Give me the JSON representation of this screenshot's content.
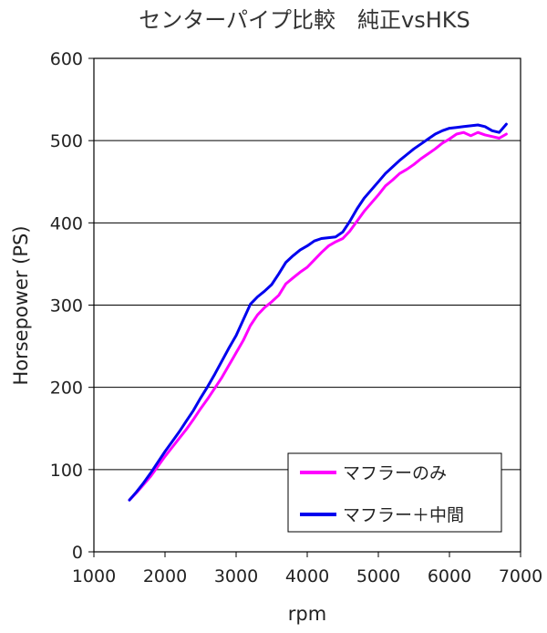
{
  "chart_data": {
    "type": "line",
    "title": "センターパイプ比較　純正vsHKS",
    "xlabel": "rpm",
    "ylabel": "Horsepower (PS)",
    "xlim": [
      1000,
      7000
    ],
    "ylim": [
      0,
      600
    ],
    "x_ticks": [
      1000,
      2000,
      3000,
      4000,
      5000,
      6000,
      7000
    ],
    "y_ticks": [
      0,
      100,
      200,
      300,
      400,
      500,
      600
    ],
    "grid": "horizontal",
    "legend_position": "bottom-right",
    "series": [
      {
        "name": "マフラーのみ",
        "color": "#ff00ff",
        "x": [
          1500,
          1600,
          1700,
          1800,
          1900,
          2000,
          2100,
          2200,
          2300,
          2400,
          2500,
          2600,
          2700,
          2800,
          2900,
          3000,
          3100,
          3200,
          3300,
          3400,
          3500,
          3600,
          3700,
          3800,
          3900,
          4000,
          4100,
          4200,
          4300,
          4400,
          4500,
          4600,
          4700,
          4800,
          4900,
          5000,
          5100,
          5200,
          5300,
          5400,
          5500,
          5600,
          5700,
          5800,
          5900,
          6000,
          6100,
          6200,
          6300,
          6400,
          6500,
          6600,
          6700,
          6800
        ],
        "y": [
          63,
          72,
          82,
          92,
          104,
          116,
          127,
          138,
          149,
          161,
          174,
          186,
          199,
          212,
          227,
          242,
          257,
          275,
          288,
          297,
          304,
          312,
          326,
          333,
          340,
          346,
          355,
          364,
          372,
          377,
          381,
          390,
          402,
          414,
          424,
          434,
          445,
          452,
          460,
          465,
          471,
          478,
          484,
          490,
          497,
          502,
          508,
          510,
          506,
          510,
          507,
          505,
          503,
          508
        ]
      },
      {
        "name": "マフラー＋中間",
        "color": "#0000ee",
        "x": [
          1500,
          1600,
          1700,
          1800,
          1900,
          2000,
          2100,
          2200,
          2300,
          2400,
          2500,
          2600,
          2700,
          2800,
          2900,
          3000,
          3100,
          3200,
          3300,
          3400,
          3500,
          3600,
          3700,
          3800,
          3900,
          4000,
          4100,
          4200,
          4300,
          4400,
          4500,
          4600,
          4700,
          4800,
          4900,
          5000,
          5100,
          5200,
          5300,
          5400,
          5500,
          5600,
          5700,
          5800,
          5900,
          6000,
          6100,
          6200,
          6300,
          6400,
          6500,
          6600,
          6700,
          6800
        ],
        "y": [
          63,
          73,
          84,
          96,
          109,
          122,
          134,
          146,
          159,
          172,
          187,
          201,
          216,
          232,
          248,
          263,
          282,
          301,
          310,
          317,
          325,
          338,
          352,
          360,
          367,
          372,
          378,
          381,
          382,
          383,
          389,
          402,
          417,
          430,
          440,
          450,
          460,
          468,
          476,
          483,
          490,
          496,
          502,
          508,
          512,
          515,
          516,
          517,
          518,
          519,
          517,
          512,
          510,
          520
        ]
      }
    ]
  }
}
